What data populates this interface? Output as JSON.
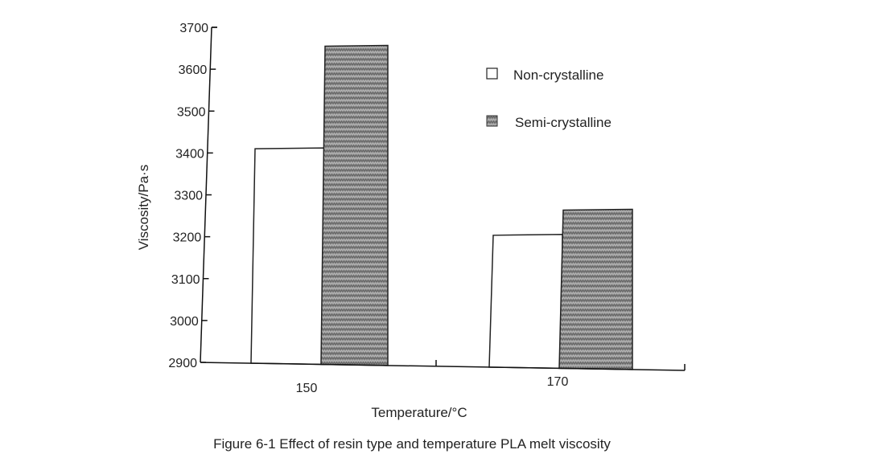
{
  "chart_data": {
    "type": "bar",
    "title": "",
    "categories": [
      "150",
      "170"
    ],
    "series": [
      {
        "name": "Non-crystalline",
        "values": [
          3410,
          3215
        ],
        "color": "#ffffff"
      },
      {
        "name": "Semi-crystalline",
        "values": [
          3655,
          3275
        ],
        "color": "#8c8c8c"
      }
    ],
    "xlabel": "Temperature/°C",
    "ylabel": "Viscosity/Pa·s",
    "ylim": [
      2900,
      3700
    ],
    "yticks": [
      "2900",
      "3000",
      "3100",
      "3200",
      "3300",
      "3400",
      "3500",
      "3600",
      "3700"
    ],
    "legend": [
      "Non-crystalline",
      "Semi-crystalline"
    ],
    "legend_position": "top-right",
    "grid": false
  },
  "caption": "Figure 6-1 Effect of resin type and temperature PLA melt viscosity"
}
